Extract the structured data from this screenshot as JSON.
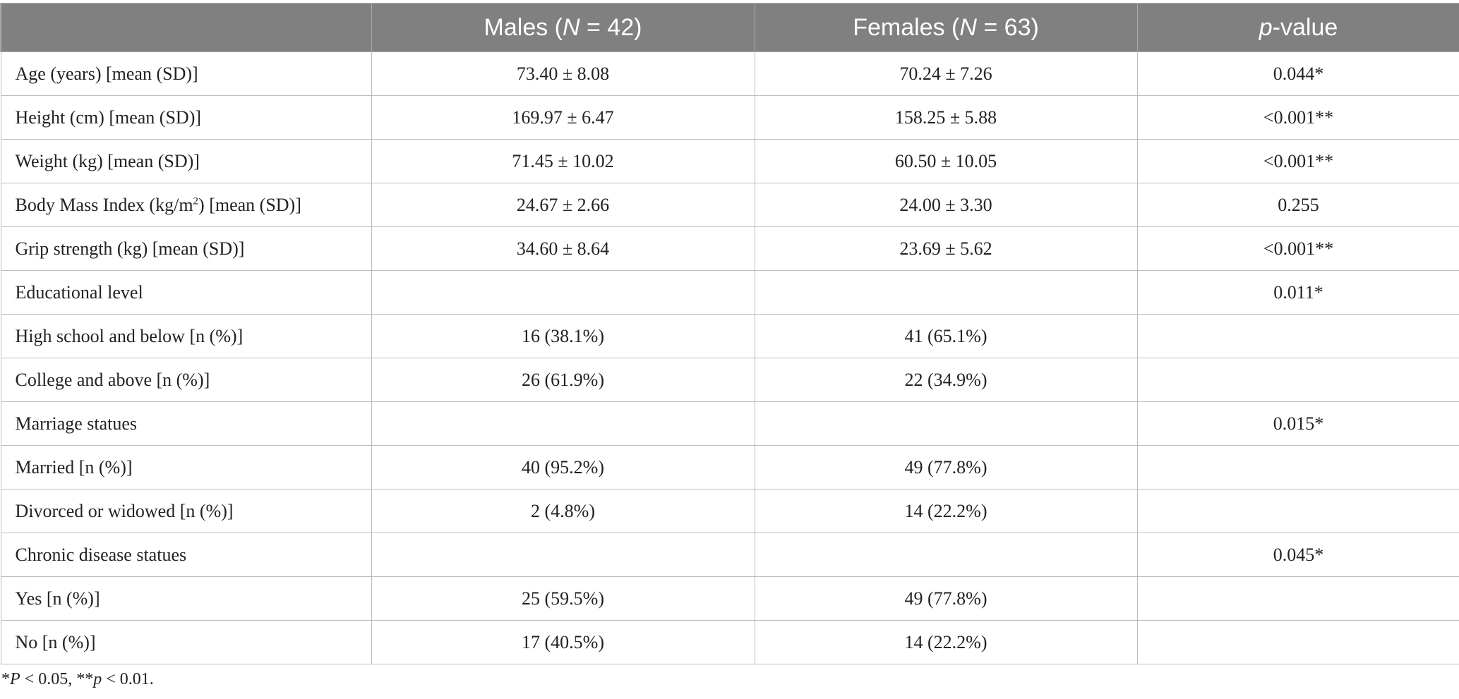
{
  "table": {
    "header": {
      "col0": "",
      "males": {
        "prefix": "Males (",
        "n_symbol": "N",
        "suffix": " = 42)"
      },
      "females": {
        "prefix": "Females (",
        "n_symbol": "N",
        "suffix": " = 63)"
      },
      "pvalue": {
        "p_symbol": "p",
        "suffix": "-value"
      }
    },
    "rows": [
      {
        "label": "Age (years) [mean (SD)]",
        "males": "73.40 ± 8.08",
        "females": "70.24 ± 7.26",
        "p": "0.044*"
      },
      {
        "label": "Height (cm) [mean (SD)]",
        "males": "169.97 ± 6.47",
        "females": "158.25 ± 5.88",
        "p": "<0.001**"
      },
      {
        "label": "Weight (kg) [mean (SD)]",
        "males": "71.45 ± 10.02",
        "females": "60.50 ± 10.05",
        "p": "<0.001**"
      },
      {
        "label_pre": "Body Mass Index (kg/m",
        "label_sup": "2",
        "label_post": ") [mean (SD)]",
        "males": "24.67 ± 2.66",
        "females": "24.00 ± 3.30",
        "p": "0.255"
      },
      {
        "label": "Grip strength (kg) [mean (SD)]",
        "males": "34.60 ± 8.64",
        "females": "23.69 ± 5.62",
        "p": "<0.001**"
      },
      {
        "label": "Educational level",
        "males": "",
        "females": "",
        "p": "0.011*"
      },
      {
        "label": "High school and below [n (%)]",
        "males": "16 (38.1%)",
        "females": "41 (65.1%)",
        "p": ""
      },
      {
        "label": "College and above [n (%)]",
        "males": "26 (61.9%)",
        "females": "22 (34.9%)",
        "p": ""
      },
      {
        "label": "Marriage statues",
        "males": "",
        "females": "",
        "p": "0.015*"
      },
      {
        "label": "Married [n (%)]",
        "males": "40 (95.2%)",
        "females": "49 (77.8%)",
        "p": ""
      },
      {
        "label": "Divorced or widowed [n (%)]",
        "males": "2 (4.8%)",
        "females": "14 (22.2%)",
        "p": ""
      },
      {
        "label": "Chronic disease statues",
        "males": "",
        "females": "",
        "p": "0.045*"
      },
      {
        "label": "Yes [n (%)]",
        "males": "25 (59.5%)",
        "females": "49 (77.8%)",
        "p": ""
      },
      {
        "label": "No [n (%)]",
        "males": "17 (40.5%)",
        "females": "14 (22.2%)",
        "p": ""
      }
    ]
  },
  "footnote": {
    "part1": "*",
    "P1": "P",
    "part2": " < 0.05, **",
    "p2": "p",
    "part3": " < 0.01."
  }
}
